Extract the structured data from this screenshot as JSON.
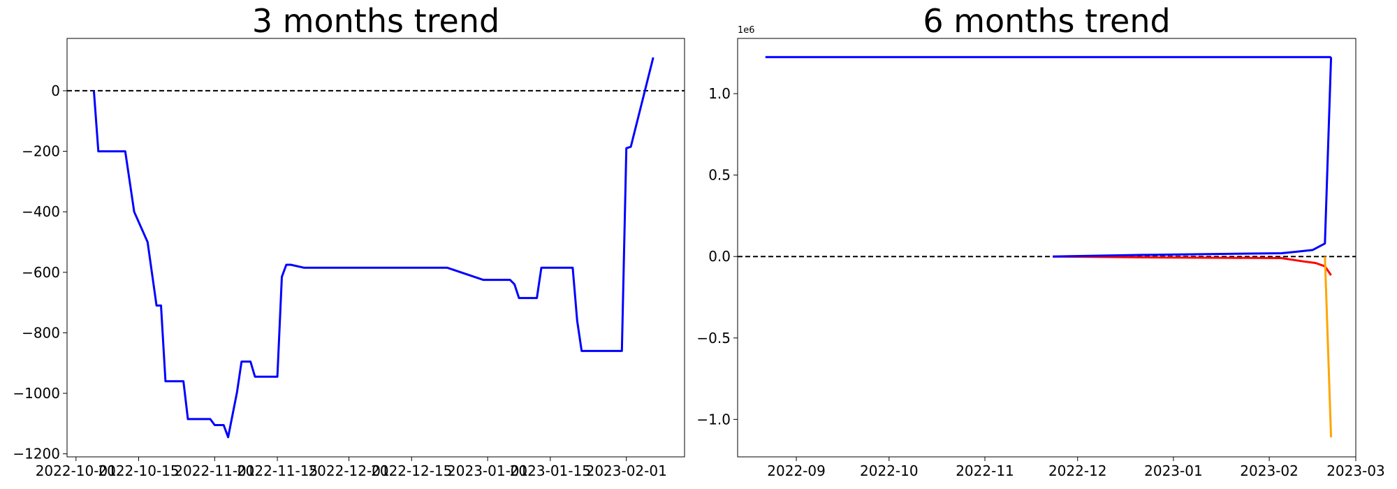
{
  "chart_data": [
    {
      "type": "line",
      "title": "3 months trend",
      "xlim": [
        "2022-09-29",
        "2023-02-14"
      ],
      "xticks": [
        "2022-10-01",
        "2022-10-15",
        "2022-11-01",
        "2022-11-15",
        "2022-12-01",
        "2022-12-15",
        "2023-01-01",
        "2023-01-15",
        "2023-02-01"
      ],
      "ylim": [
        -1210,
        173
      ],
      "yticks": [
        {
          "value": -1200,
          "label": "−1200"
        },
        {
          "value": -1000,
          "label": "−1000"
        },
        {
          "value": -800,
          "label": "−800"
        },
        {
          "value": -600,
          "label": "−600"
        },
        {
          "value": -400,
          "label": "−400"
        },
        {
          "value": -200,
          "label": "−200"
        },
        0
      ],
      "reference_line": {
        "y": 0,
        "color": "#000000"
      },
      "series": [
        {
          "color": "#0000ff",
          "x": [
            "2022-10-05",
            "2022-10-06",
            "2022-10-12",
            "2022-10-14",
            "2022-10-17",
            "2022-10-19",
            "2022-10-20",
            "2022-10-21",
            "2022-10-25",
            "2022-10-26",
            "2022-10-31",
            "2022-11-01",
            "2022-11-03",
            "2022-11-04",
            "2022-11-06",
            "2022-11-07",
            "2022-11-09",
            "2022-11-10",
            "2022-11-15",
            "2022-11-16",
            "2022-11-17",
            "2022-11-18",
            "2022-11-21",
            "2022-12-23",
            "2022-12-31",
            "2023-01-06",
            "2023-01-07",
            "2023-01-08",
            "2023-01-12",
            "2023-01-13",
            "2023-01-20",
            "2023-01-21",
            "2023-01-22",
            "2023-01-31",
            "2023-02-01",
            "2023-02-02",
            "2023-02-07"
          ],
          "values": [
            0,
            -200,
            -200,
            -400,
            -500,
            -710,
            -710,
            -960,
            -960,
            -1085,
            -1085,
            -1105,
            -1105,
            -1145,
            -995,
            -895,
            -895,
            -945,
            -945,
            -615,
            -575,
            -575,
            -585,
            -585,
            -625,
            -625,
            -640,
            -685,
            -685,
            -585,
            -585,
            -760,
            -860,
            -860,
            -190,
            -185,
            110
          ]
        }
      ]
    },
    {
      "type": "line",
      "title": "6 months trend",
      "y_offset_label": "1e6",
      "xlim": [
        "2022-08-13",
        "2023-03-01"
      ],
      "xticks": [
        "2022-09",
        "2022-10",
        "2022-11",
        "2022-12",
        "2023-01",
        "2023-02",
        "2023-03"
      ],
      "ylim": [
        -1.23,
        1.339
      ],
      "yticks": [
        {
          "value": -1.0,
          "label": "−1.0"
        },
        {
          "value": -0.5,
          "label": "−0.5"
        },
        {
          "value": 0.0,
          "label": "0.0"
        },
        {
          "value": 0.5,
          "label": "0.5"
        },
        {
          "value": 1.0,
          "label": "1.0"
        }
      ],
      "reference_line": {
        "y": 0,
        "color": "#000000"
      },
      "series": [
        {
          "color": "#0000ff",
          "x": [
            "2022-08-22",
            "2023-02-21"
          ],
          "values": [
            1.224,
            1.224
          ]
        },
        {
          "color": "#ff0000",
          "x": [
            "2022-11-23",
            "2022-12-22",
            "2023-02-05",
            "2023-02-12",
            "2023-02-16",
            "2023-02-19",
            "2023-02-21"
          ],
          "values": [
            0,
            -0.005,
            -0.01,
            -0.03,
            -0.04,
            -0.06,
            -0.115
          ]
        },
        {
          "color": "#ffa500",
          "x": [
            "2023-02-19",
            "2023-02-21"
          ],
          "values": [
            0,
            -1.11
          ]
        },
        {
          "color": "#0000ff",
          "x": [
            "2022-11-23",
            "2022-12-22",
            "2023-02-05",
            "2023-02-10",
            "2023-02-15",
            "2023-02-19",
            "2023-02-21"
          ],
          "values": [
            0,
            0.01,
            0.02,
            0.03,
            0.04,
            0.08,
            1.224
          ]
        }
      ]
    }
  ]
}
